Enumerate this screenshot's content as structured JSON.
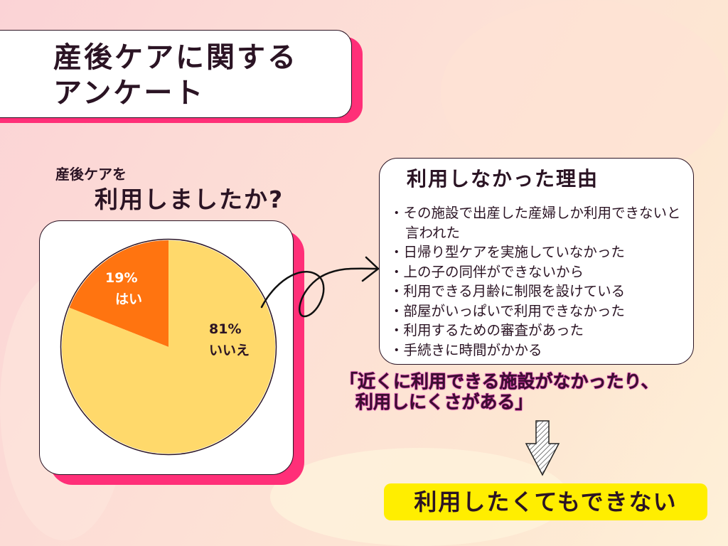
{
  "title": {
    "line1": "産後ケアに関する",
    "line2": "アンケート"
  },
  "question": {
    "line1": "産後ケアを",
    "line2": "利用しましたか?"
  },
  "chart_data": {
    "type": "pie",
    "categories": [
      "はい",
      "いいえ"
    ],
    "values": [
      19,
      81
    ],
    "labels": [
      {
        "percent": "19%",
        "name": "はい"
      },
      {
        "percent": "81%",
        "name": "いいえ"
      }
    ],
    "colors": [
      "#ff7410",
      "#ffd96b"
    ]
  },
  "reasons": {
    "title": "利用しなかった理由",
    "items": [
      "その施設で出産した産婦しか利用できないと言われた",
      "日帰り型ケアを実施していなかった",
      "上の子の同伴ができないから",
      "利用できる月齢に制限を設けている",
      "部屋がいっぱいで利用できなかった",
      "利用するための審査があった",
      "手続きに時間がかかる"
    ]
  },
  "quote": {
    "line1": "「近くに利用できる施設がなかったり、",
    "line2": "利用しにくさがある」"
  },
  "conclusion": "利用したくてもできない",
  "colors": {
    "accent_pink": "#ff2f78",
    "highlight_yellow": "#ffee00"
  }
}
